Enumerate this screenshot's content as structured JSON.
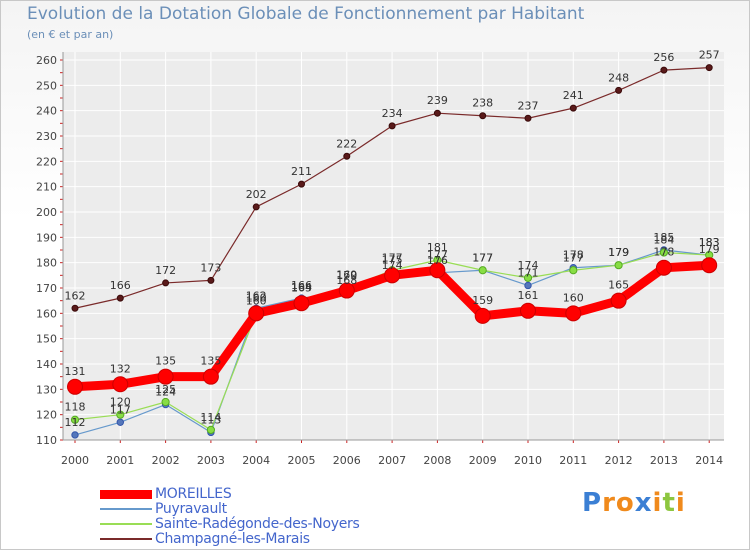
{
  "title": "Evolution de la Dotation Globale de Fonctionnement par Habitant",
  "subtitle": "(en € et par an)",
  "logo": {
    "text": "Proxiti",
    "letters": [
      "P",
      "r",
      "o",
      "x",
      "i",
      "t",
      "i"
    ],
    "colors": [
      "#3b7fd4",
      "#f08a1c",
      "#f08a1c",
      "#3b7fd4",
      "#f08a1c",
      "#8dc63f",
      "#f08a1c"
    ]
  },
  "chart_data": {
    "type": "line",
    "title": "Evolution de la Dotation Globale de Fonctionnement par Habitant",
    "subtitle": "(en € et par an)",
    "xlabel": "",
    "ylabel": "",
    "x": [
      "2000",
      "2001",
      "2002",
      "2003",
      "2004",
      "2005",
      "2006",
      "2007",
      "2008",
      "2009",
      "2010",
      "2011",
      "2012",
      "2013",
      "2014"
    ],
    "ylim": [
      110,
      260
    ],
    "yticks": [
      110,
      120,
      130,
      140,
      150,
      160,
      170,
      180,
      190,
      200,
      210,
      220,
      230,
      240,
      250,
      260
    ],
    "grid": true,
    "series": [
      {
        "name": "MOREILLES",
        "color": "#ff0000",
        "values": [
          131,
          132,
          135,
          135,
          160,
          164,
          169,
          175,
          177,
          159,
          161,
          160,
          165,
          178,
          179
        ],
        "show_labels": true
      },
      {
        "name": "Puyravault",
        "color": "#6699cc",
        "values": [
          112,
          117,
          124,
          113,
          162,
          166,
          168,
          174,
          176,
          177,
          171,
          178,
          179,
          185,
          183
        ],
        "show_labels": true
      },
      {
        "name": "Sainte-Radégonde-des-Noyers",
        "color": "#99dd55",
        "values": [
          118,
          120,
          125,
          114,
          160,
          165,
          170,
          177,
          181,
          177,
          174,
          177,
          179,
          184,
          183
        ],
        "show_labels": true
      },
      {
        "name": "Champagné-les-Marais",
        "color": "#7a2a2a",
        "values": [
          162,
          166,
          172,
          173,
          202,
          211,
          222,
          234,
          239,
          238,
          237,
          241,
          248,
          256,
          257
        ],
        "show_labels": true
      }
    ]
  }
}
